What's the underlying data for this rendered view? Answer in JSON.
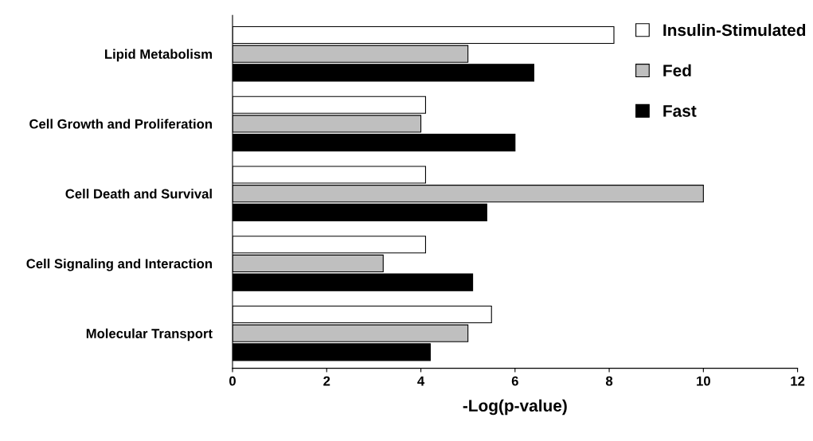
{
  "chart_data": {
    "type": "bar",
    "orientation": "horizontal",
    "xlabel": "-Log(p-value)",
    "categories": [
      "Lipid Metabolism",
      "Cell Growth and Proliferation",
      "Cell Death and Survival",
      "Cell Signaling and Interaction",
      "Molecular Transport"
    ],
    "series": [
      {
        "name": "Insulin-Stimulated",
        "color": "#ffffff",
        "values": [
          8.1,
          4.1,
          4.1,
          4.1,
          5.5
        ]
      },
      {
        "name": "Fed",
        "color": "#bfbfbf",
        "values": [
          5.0,
          4.0,
          10.0,
          3.2,
          5.0
        ]
      },
      {
        "name": "Fast",
        "color": "#000000",
        "values": [
          6.4,
          6.0,
          5.4,
          5.1,
          4.2
        ]
      }
    ],
    "xlim": [
      0,
      12
    ],
    "xticks": [
      0,
      2,
      4,
      6,
      8,
      10,
      12
    ],
    "grid": false,
    "legend": "top right"
  }
}
